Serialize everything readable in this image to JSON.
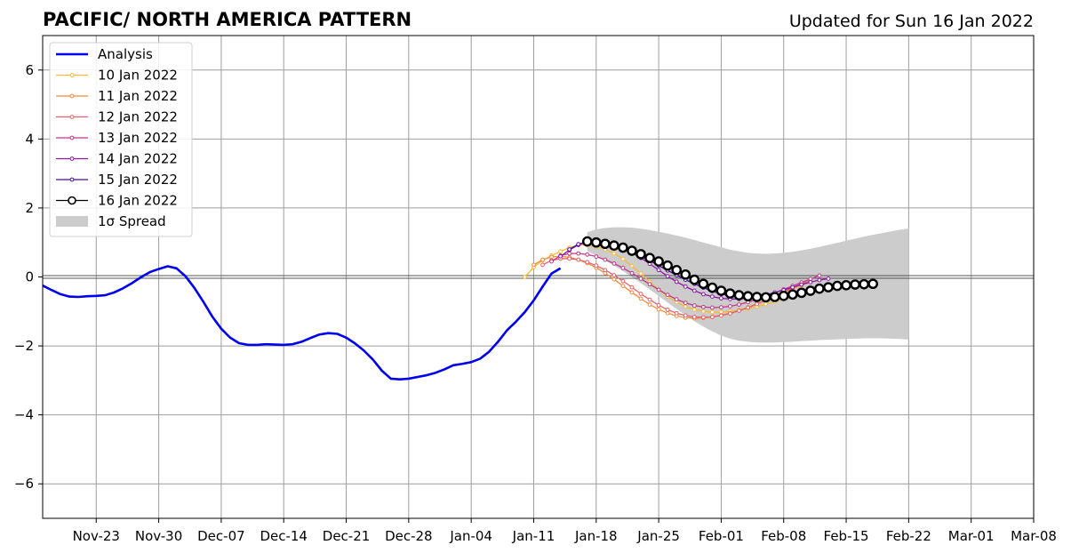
{
  "chart_data": {
    "type": "line",
    "title": "PACIFIC/ NORTH AMERICA PATTERN",
    "subtitle": "Updated for Sun 16 Jan 2022",
    "x_ticks": [
      "Nov-23",
      "Nov-30",
      "Dec-07",
      "Dec-14",
      "Dec-21",
      "Dec-28",
      "Jan-04",
      "Jan-11",
      "Jan-18",
      "Jan-25",
      "Feb-01",
      "Feb-08",
      "Feb-15",
      "Feb-22",
      "Mar-01",
      "Mar-08"
    ],
    "y_ticks": [
      "−6",
      "−4",
      "−2",
      "0",
      "2",
      "4",
      "6"
    ],
    "xlim": [
      "2021-11-17",
      "2022-03-08"
    ],
    "ylim": [
      -7,
      7
    ],
    "grid": true,
    "legend_position": "top-left",
    "analysis": {
      "name": "Analysis",
      "color": "#0000ee",
      "start_date": "2021-11-17",
      "values": [
        -0.25,
        -0.38,
        -0.5,
        -0.57,
        -0.58,
        -0.56,
        -0.55,
        -0.53,
        -0.45,
        -0.33,
        -0.18,
        -0.01,
        0.14,
        0.23,
        0.31,
        0.25,
        0.02,
        -0.32,
        -0.72,
        -1.15,
        -1.5,
        -1.76,
        -1.92,
        -1.97,
        -1.97,
        -1.95,
        -1.96,
        -1.97,
        -1.95,
        -1.88,
        -1.77,
        -1.67,
        -1.63,
        -1.65,
        -1.76,
        -1.93,
        -2.14,
        -2.4,
        -2.72,
        -2.95,
        -2.97,
        -2.95,
        -2.9,
        -2.85,
        -2.78,
        -2.68,
        -2.56,
        -2.52,
        -2.47,
        -2.37,
        -2.17,
        -1.88,
        -1.55,
        -1.3,
        -1.02,
        -0.68,
        -0.28,
        0.1,
        0.25
      ]
    },
    "forecasts": [
      {
        "name": "10 Jan 2022",
        "color": "#f9b935",
        "start_date": "2022-01-10",
        "values": [
          0.0,
          0.28,
          0.48,
          0.62,
          0.74,
          0.85,
          0.92,
          0.93,
          0.88,
          0.8,
          0.68,
          0.52,
          0.32,
          0.1,
          -0.14,
          -0.37,
          -0.57,
          -0.73,
          -0.86,
          -0.95,
          -1.0,
          -1.02,
          -1.02,
          -1.0,
          -0.97,
          -0.92,
          -0.86,
          -0.79,
          -0.72,
          -0.64,
          -0.56,
          -0.48,
          -0.4,
          -0.33,
          -0.26
        ]
      },
      {
        "name": "11 Jan 2022",
        "color": "#f28a41",
        "start_date": "2022-01-11",
        "values": [
          0.35,
          0.5,
          0.58,
          0.6,
          0.57,
          0.5,
          0.4,
          0.27,
          0.11,
          -0.07,
          -0.26,
          -0.45,
          -0.63,
          -0.8,
          -0.94,
          -1.05,
          -1.13,
          -1.18,
          -1.2,
          -1.19,
          -1.16,
          -1.11,
          -1.05,
          -0.97,
          -0.88,
          -0.78,
          -0.67,
          -0.56,
          -0.45,
          -0.34,
          -0.24,
          -0.15
        ]
      },
      {
        "name": "12 Jan 2022",
        "color": "#e2646a",
        "start_date": "2022-01-12",
        "values": [
          0.35,
          0.48,
          0.53,
          0.53,
          0.5,
          0.43,
          0.33,
          0.2,
          0.05,
          -0.12,
          -0.3,
          -0.49,
          -0.66,
          -0.82,
          -0.95,
          -1.05,
          -1.12,
          -1.16,
          -1.17,
          -1.16,
          -1.12,
          -1.06,
          -0.98,
          -0.89,
          -0.79,
          -0.67,
          -0.55,
          -0.43,
          -0.31,
          -0.2,
          -0.1
        ]
      },
      {
        "name": "13 Jan 2022",
        "color": "#c0398a",
        "start_date": "2022-01-13",
        "values": [
          0.45,
          0.62,
          0.68,
          0.68,
          0.65,
          0.59,
          0.5,
          0.39,
          0.26,
          0.11,
          -0.05,
          -0.21,
          -0.37,
          -0.52,
          -0.65,
          -0.75,
          -0.83,
          -0.87,
          -0.89,
          -0.88,
          -0.85,
          -0.8,
          -0.73,
          -0.65,
          -0.56,
          -0.46,
          -0.36,
          -0.26,
          -0.16,
          -0.06,
          0.04
        ]
      },
      {
        "name": "14 Jan 2022",
        "color": "#8d17a6",
        "start_date": "2022-01-14",
        "values": [
          0.6,
          0.78,
          0.93,
          1.01,
          1.03,
          1.0,
          0.93,
          0.83,
          0.7,
          0.55,
          0.38,
          0.2,
          0.02,
          -0.14,
          -0.28,
          -0.4,
          -0.5,
          -0.57,
          -0.62,
          -0.64,
          -0.64,
          -0.61,
          -0.57,
          -0.52,
          -0.45,
          -0.38,
          -0.3,
          -0.22,
          -0.15,
          -0.09,
          -0.05
        ]
      },
      {
        "name": "15 Jan 2022",
        "color": "#4f0a9e",
        "start_date": "2022-01-15",
        "values": [
          0.8,
          0.95,
          1.02,
          1.02,
          0.98,
          0.91,
          0.82,
          0.72,
          0.6,
          0.47,
          0.33,
          0.19,
          0.05,
          -0.08,
          -0.2,
          -0.31,
          -0.41,
          -0.49,
          -0.55,
          -0.59,
          -0.61,
          -0.62,
          -0.61,
          -0.58,
          -0.54,
          -0.48,
          -0.42,
          -0.36,
          -0.3,
          -0.25,
          -0.21,
          -0.18,
          -0.16,
          -0.15
        ]
      },
      {
        "name": "16 Jan 2022",
        "color": "#000000",
        "start_date": "2022-01-17",
        "values": [
          1.03,
          1.0,
          0.96,
          0.91,
          0.85,
          0.76,
          0.66,
          0.55,
          0.45,
          0.33,
          0.2,
          0.07,
          -0.08,
          -0.2,
          -0.31,
          -0.4,
          -0.48,
          -0.53,
          -0.56,
          -0.58,
          -0.59,
          -0.58,
          -0.55,
          -0.51,
          -0.46,
          -0.4,
          -0.34,
          -0.3,
          -0.26,
          -0.24,
          -0.22,
          -0.21,
          -0.2
        ]
      }
    ],
    "spread": {
      "name": "1σ Spread",
      "color": "#cccccc",
      "start_date": "2022-01-17",
      "upper": [
        1.3,
        1.38,
        1.42,
        1.44,
        1.44,
        1.43,
        1.4,
        1.36,
        1.31,
        1.26,
        1.2,
        1.14,
        1.07,
        1.0,
        0.93,
        0.86,
        0.79,
        0.74,
        0.7,
        0.68,
        0.67,
        0.68,
        0.7,
        0.73,
        0.77,
        0.82,
        0.87,
        0.93,
        0.99,
        1.05,
        1.11,
        1.17,
        1.22,
        1.27,
        1.32,
        1.37,
        1.4
      ],
      "lower": [
        0.75,
        0.62,
        0.48,
        0.33,
        0.17,
        0.0,
        -0.18,
        -0.36,
        -0.55,
        -0.74,
        -0.93,
        -1.11,
        -1.28,
        -1.44,
        -1.58,
        -1.7,
        -1.79,
        -1.85,
        -1.88,
        -1.9,
        -1.9,
        -1.9,
        -1.89,
        -1.88,
        -1.86,
        -1.85,
        -1.83,
        -1.82,
        -1.81,
        -1.8,
        -1.79,
        -1.78,
        -1.78,
        -1.78,
        -1.79,
        -1.8,
        -1.81
      ]
    }
  }
}
